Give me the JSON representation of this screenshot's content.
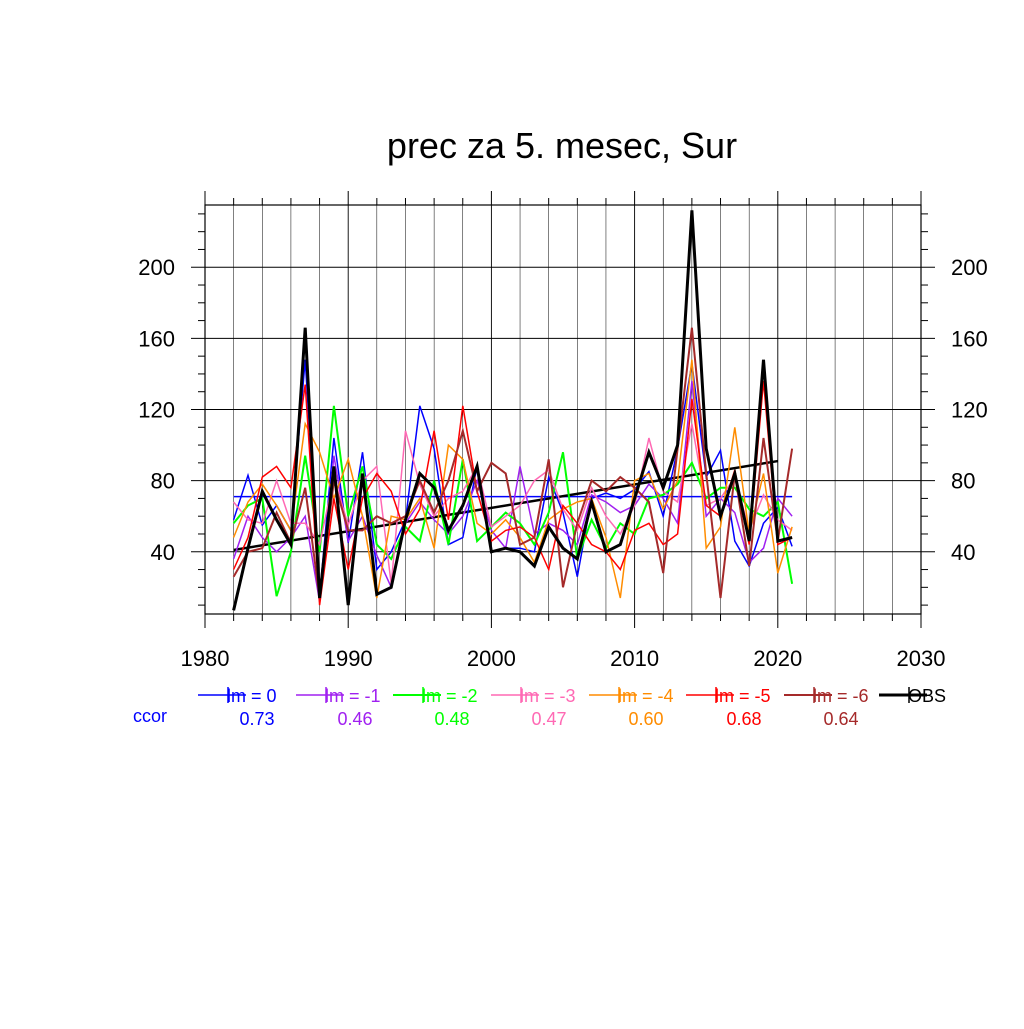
{
  "chart_data": {
    "type": "line",
    "title": "prec za 5. mesec, Sur",
    "xlabel": "",
    "ylabel": "",
    "xlim": [
      1980,
      2030
    ],
    "ylim": [
      5,
      235
    ],
    "x_ticks": [
      1980,
      1990,
      2000,
      2010,
      2020,
      2030
    ],
    "y_ticks": [
      40,
      80,
      120,
      160,
      200
    ],
    "grid": true,
    "legend_position": "bottom",
    "x": [
      1982,
      1983,
      1984,
      1985,
      1986,
      1987,
      1988,
      1989,
      1990,
      1991,
      1992,
      1993,
      1994,
      1995,
      1996,
      1997,
      1998,
      1999,
      2000,
      2001,
      2002,
      2003,
      2004,
      2005,
      2006,
      2007,
      2008,
      2009,
      2010,
      2011,
      2012,
      2013,
      2014,
      2015,
      2016,
      2017,
      2018,
      2019,
      2020,
      2021
    ],
    "series": [
      {
        "name": "lm = 0",
        "color": "#0000ff",
        "width": 1.5,
        "values": [
          58,
          83,
          55,
          66,
          52,
          148,
          15,
          104,
          45,
          96,
          30,
          40,
          58,
          122,
          98,
          44,
          48,
          88,
          40,
          42,
          42,
          40,
          82,
          62,
          26,
          70,
          73,
          70,
          75,
          85,
          60,
          98,
          146,
          82,
          97,
          46,
          32,
          56,
          65,
          43
        ]
      },
      {
        "name": "lm = -1",
        "color": "#a020f0",
        "width": 1.5,
        "values": [
          36,
          60,
          48,
          40,
          48,
          60,
          12,
          94,
          46,
          60,
          38,
          20,
          56,
          68,
          58,
          50,
          60,
          80,
          52,
          42,
          88,
          50,
          56,
          52,
          44,
          72,
          68,
          62,
          66,
          78,
          70,
          56,
          136,
          60,
          70,
          62,
          34,
          42,
          70,
          60
        ]
      },
      {
        "name": "lm = -2",
        "color": "#00ff00",
        "width": 2,
        "values": [
          56,
          66,
          70,
          15,
          40,
          94,
          40,
          122,
          60,
          88,
          44,
          36,
          54,
          46,
          80,
          44,
          92,
          46,
          54,
          62,
          56,
          44,
          62,
          96,
          36,
          58,
          42,
          56,
          50,
          70,
          72,
          78,
          90,
          70,
          76,
          76,
          64,
          60,
          68,
          22
        ]
      },
      {
        "name": "lm = -3",
        "color": "#ff69b4",
        "width": 1.5,
        "values": [
          68,
          58,
          56,
          80,
          56,
          56,
          44,
          82,
          55,
          80,
          88,
          22,
          108,
          78,
          60,
          70,
          74,
          88,
          54,
          60,
          66,
          80,
          86,
          64,
          52,
          76,
          60,
          50,
          66,
          104,
          74,
          68,
          112,
          66,
          70,
          82,
          52,
          72,
          58,
          52
        ]
      },
      {
        "name": "lm = -4",
        "color": "#ff8c00",
        "width": 1.5,
        "values": [
          48,
          68,
          78,
          66,
          52,
          112,
          96,
          70,
          92,
          60,
          14,
          60,
          58,
          70,
          42,
          100,
          92,
          56,
          50,
          58,
          48,
          34,
          58,
          64,
          68,
          70,
          48,
          14,
          80,
          84,
          64,
          80,
          148,
          42,
          54,
          110,
          50,
          84,
          28,
          54
        ]
      },
      {
        "name": "lm = -5",
        "color": "#ff0000",
        "width": 1.5,
        "values": [
          30,
          48,
          82,
          88,
          76,
          134,
          10,
          70,
          30,
          70,
          84,
          74,
          50,
          64,
          108,
          58,
          122,
          74,
          46,
          52,
          54,
          48,
          30,
          66,
          56,
          44,
          40,
          30,
          52,
          56,
          44,
          50,
          126,
          66,
          60,
          86,
          44,
          136,
          44,
          48
        ]
      },
      {
        "name": "lm = -6",
        "color": "#a52a2a",
        "width": 2,
        "values": [
          26,
          40,
          42,
          62,
          45,
          76,
          14,
          80,
          52,
          52,
          60,
          56,
          60,
          80,
          62,
          80,
          108,
          74,
          90,
          84,
          44,
          48,
          92,
          20,
          56,
          80,
          74,
          82,
          76,
          68,
          28,
          98,
          166,
          84,
          14,
          84,
          32,
          104,
          46,
          98
        ]
      },
      {
        "name": "OBS",
        "color": "#000000",
        "width": 3,
        "values": [
          7,
          42,
          74,
          58,
          44,
          166,
          14,
          88,
          10,
          84,
          16,
          20,
          58,
          84,
          76,
          52,
          66,
          88,
          40,
          42,
          40,
          32,
          54,
          42,
          36,
          68,
          40,
          44,
          70,
          96,
          76,
          100,
          232,
          98,
          60,
          84,
          46,
          148,
          46,
          48
        ]
      }
    ],
    "reference_lines": [
      {
        "color": "#0000ff",
        "width": 1.5,
        "x": [
          1982,
          2021
        ],
        "y": [
          71,
          71
        ]
      },
      {
        "color": "#000000",
        "width": 2.5,
        "x": [
          1982,
          2020
        ],
        "y": [
          41,
          91
        ]
      }
    ],
    "ccor_label": "ccor",
    "ccor_values": [
      "0.73",
      "0.46",
      "0.48",
      "0.47",
      "0.60",
      "0.68",
      "0.64"
    ]
  }
}
